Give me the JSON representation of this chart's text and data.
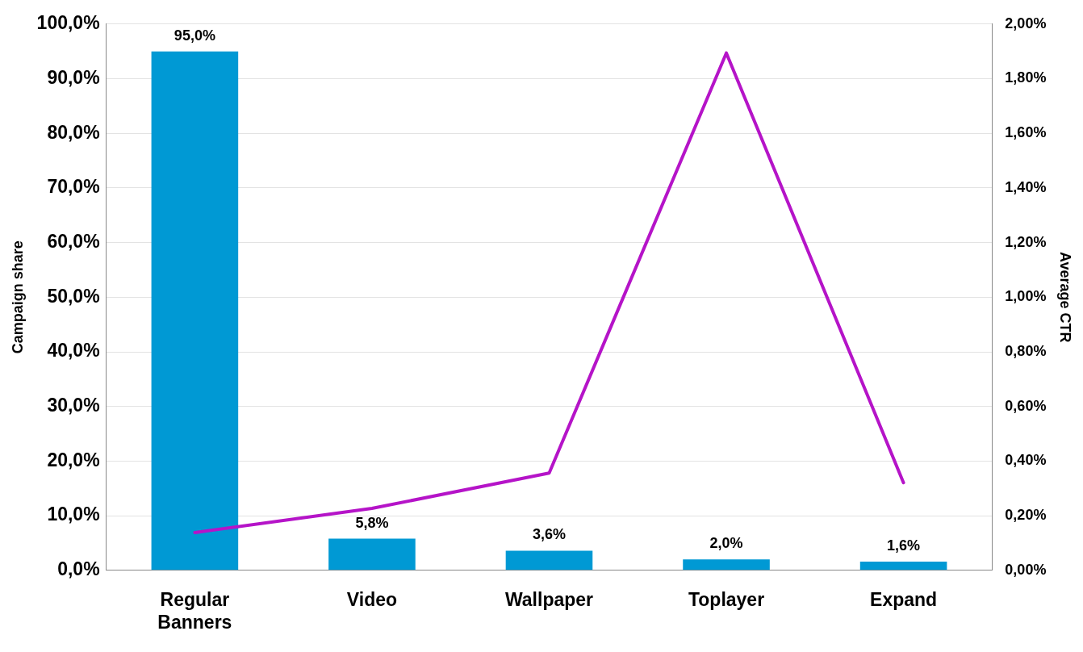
{
  "chart_data": {
    "type": "bar",
    "ylabel": "Campaign share",
    "y2label": "Average CTR",
    "categories": [
      "Regular Banners",
      "Video",
      "Wallpaper",
      "Toplayer",
      "Expand"
    ],
    "series": [
      {
        "color": "#0099d4",
        "values": [
          95.0,
          5.8,
          3.6,
          2.0,
          1.6
        ],
        "value_labels": [
          "95,0%",
          "5,8%",
          "3,6%",
          "2,0%",
          "1,6%"
        ]
      },
      {
        "type": "line",
        "axis": "y2",
        "color": "#b514c8",
        "values": [
          0.138,
          0.227,
          0.356,
          1.894,
          0.321
        ]
      }
    ],
    "ylim": [
      0,
      100
    ],
    "yticks": [
      {
        "value": 0,
        "label": "0,0%"
      },
      {
        "value": 10,
        "label": "10,0%"
      },
      {
        "value": 20,
        "label": "20,0%"
      },
      {
        "value": 30,
        "label": "30,0%"
      },
      {
        "value": 40,
        "label": "40,0%"
      },
      {
        "value": 50,
        "label": "50,0%"
      },
      {
        "value": 60,
        "label": "60,0%"
      },
      {
        "value": 70,
        "label": "70,0%"
      },
      {
        "value": 80,
        "label": "80,0%"
      },
      {
        "value": 90,
        "label": "90,0%"
      },
      {
        "value": 100,
        "label": "100,0%"
      }
    ],
    "y2lim": [
      0,
      2
    ],
    "y2ticks": [
      {
        "value": 0,
        "label": "0,00%"
      },
      {
        "value": 0.2,
        "label": "0,20%"
      },
      {
        "value": 0.4,
        "label": "0,40%"
      },
      {
        "value": 0.6,
        "label": "0,60%"
      },
      {
        "value": 0.8,
        "label": "0,80%"
      },
      {
        "value": 1.0,
        "label": "1,00%"
      },
      {
        "value": 1.2,
        "label": "1,20%"
      },
      {
        "value": 1.4,
        "label": "1,40%"
      },
      {
        "value": 1.6,
        "label": "1,60%"
      },
      {
        "value": 1.8,
        "label": "1,80%"
      },
      {
        "value": 2.0,
        "label": "2,00%"
      }
    ],
    "grid": "y",
    "legend": false,
    "marker": "none",
    "line_style": "solid"
  }
}
